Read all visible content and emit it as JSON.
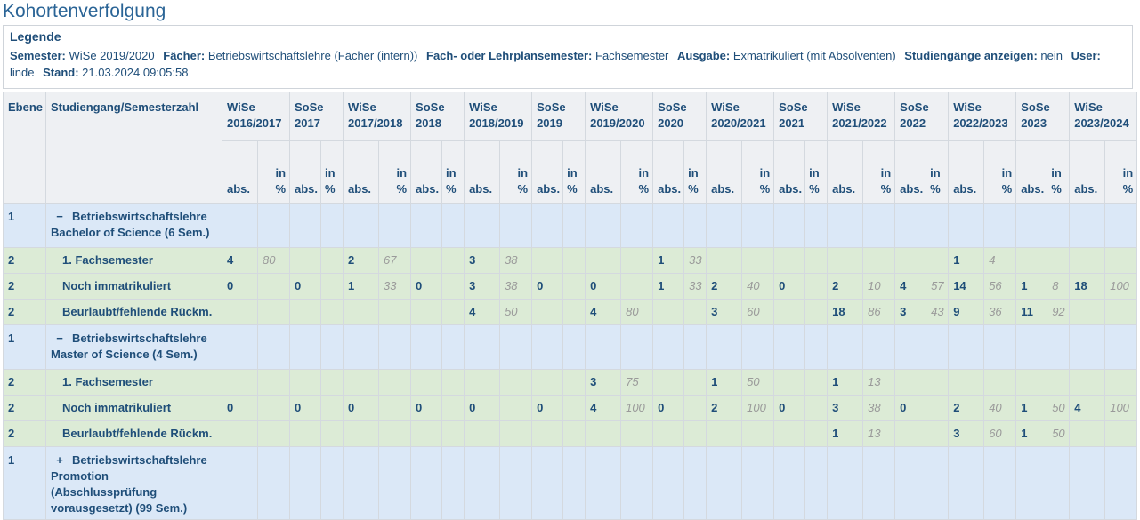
{
  "header": {
    "title": "Kohortenverfolgung"
  },
  "legend": {
    "title": "Legende",
    "items": [
      {
        "label": "Semester:",
        "value": "WiSe 2019/2020"
      },
      {
        "label": "Fächer:",
        "value": "Betriebswirtschaftslehre (Fächer (intern))"
      },
      {
        "label": "Fach- oder Lehrplansemester:",
        "value": "Fachsemester"
      },
      {
        "label": "Ausgabe:",
        "value": "Exmatrikuliert (mit Absolventen)"
      },
      {
        "label": "Studiengänge anzeigen:",
        "value": "nein"
      },
      {
        "label": "User:",
        "value": "linde"
      },
      {
        "label": "Stand:",
        "value": "21.03.2024 09:05:58"
      }
    ]
  },
  "table": {
    "columns": [
      "Ebene",
      "Studiengang/Semesterzahl"
    ],
    "semesters": [
      "WiSe 2016/2017",
      "SoSe 2017",
      "WiSe 2017/2018",
      "SoSe 2018",
      "WiSe 2018/2019",
      "SoSe 2019",
      "WiSe 2019/2020",
      "SoSe 2020",
      "WiSe 2020/2021",
      "SoSe 2021",
      "WiSe 2021/2022",
      "SoSe 2022",
      "WiSe 2022/2023",
      "SoSe 2023",
      "WiSe 2023/2024"
    ],
    "subheaders": [
      "abs.",
      "in %"
    ],
    "rows": [
      {
        "level": 1,
        "toggle": "−",
        "label": "Betriebswirtschaftslehre Bachelor of Science (6 Sem.)",
        "cells": [
          null,
          null,
          null,
          null,
          null,
          null,
          null,
          null,
          null,
          null,
          null,
          null,
          null,
          null,
          null,
          null,
          null,
          null,
          null,
          null,
          null,
          null,
          null,
          null,
          null,
          null,
          null,
          null,
          null,
          null
        ]
      },
      {
        "level": 2,
        "label": "1. Fachsemester",
        "cells": [
          4,
          80,
          null,
          null,
          2,
          67,
          null,
          null,
          3,
          38,
          null,
          null,
          null,
          null,
          1,
          33,
          null,
          null,
          null,
          null,
          null,
          null,
          null,
          null,
          1,
          4,
          null,
          null,
          null,
          null
        ]
      },
      {
        "level": 2,
        "label": "Noch immatrikuliert",
        "cells": [
          0,
          null,
          0,
          null,
          1,
          33,
          0,
          null,
          3,
          38,
          0,
          null,
          0,
          null,
          1,
          33,
          2,
          40,
          0,
          null,
          2,
          10,
          4,
          57,
          14,
          56,
          1,
          8,
          18,
          100
        ]
      },
      {
        "level": 2,
        "label": "Beurlaubt/fehlende Rückm.",
        "cells": [
          null,
          null,
          null,
          null,
          null,
          null,
          null,
          null,
          4,
          50,
          null,
          null,
          4,
          80,
          null,
          null,
          3,
          60,
          null,
          null,
          18,
          86,
          3,
          43,
          9,
          36,
          11,
          92,
          null,
          null
        ]
      },
      {
        "level": 1,
        "toggle": "−",
        "label": "Betriebswirtschaftslehre Master of Science (4 Sem.)",
        "cells": [
          null,
          null,
          null,
          null,
          null,
          null,
          null,
          null,
          null,
          null,
          null,
          null,
          null,
          null,
          null,
          null,
          null,
          null,
          null,
          null,
          null,
          null,
          null,
          null,
          null,
          null,
          null,
          null,
          null,
          null
        ]
      },
      {
        "level": 2,
        "label": "1. Fachsemester",
        "cells": [
          null,
          null,
          null,
          null,
          null,
          null,
          null,
          null,
          null,
          null,
          null,
          null,
          3,
          75,
          null,
          null,
          1,
          50,
          null,
          null,
          1,
          13,
          null,
          null,
          null,
          null,
          null,
          null,
          null,
          null
        ]
      },
      {
        "level": 2,
        "label": "Noch immatrikuliert",
        "cells": [
          0,
          null,
          0,
          null,
          0,
          null,
          0,
          null,
          0,
          null,
          0,
          null,
          4,
          100,
          0,
          null,
          2,
          100,
          0,
          null,
          3,
          38,
          0,
          null,
          2,
          40,
          1,
          50,
          4,
          100
        ]
      },
      {
        "level": 2,
        "label": "Beurlaubt/fehlende Rückm.",
        "cells": [
          null,
          null,
          null,
          null,
          null,
          null,
          null,
          null,
          null,
          null,
          null,
          null,
          null,
          null,
          null,
          null,
          null,
          null,
          null,
          null,
          1,
          13,
          null,
          null,
          3,
          60,
          1,
          50,
          null,
          null
        ]
      },
      {
        "level": 1,
        "toggle": "+",
        "label": "Betriebswirtschaftslehre Promotion (Abschlussprüfung vorausgesetzt) (99 Sem.)",
        "cells": [
          null,
          null,
          null,
          null,
          null,
          null,
          null,
          null,
          null,
          null,
          null,
          null,
          null,
          null,
          null,
          null,
          null,
          null,
          null,
          null,
          null,
          null,
          null,
          null,
          null,
          null,
          null,
          null,
          null,
          null
        ]
      }
    ]
  }
}
